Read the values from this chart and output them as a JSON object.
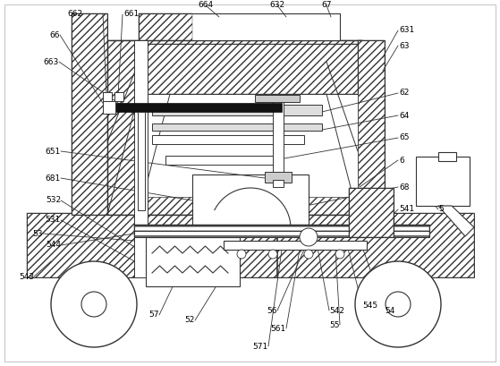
{
  "bg_color": "#ffffff",
  "line_color": "#333333",
  "figsize": [
    5.59,
    4.09
  ],
  "dpi": 100,
  "hatch_density": "////",
  "back_hatch": "\\\\"
}
